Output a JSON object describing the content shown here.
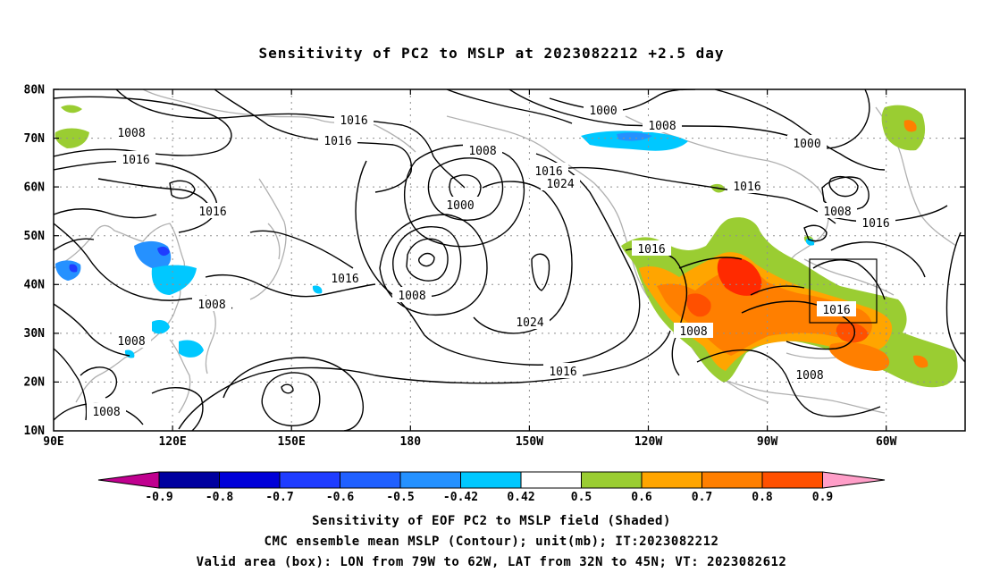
{
  "title": "Sensitivity of PC2 to MSLP at 2023082212 +2.5 day",
  "lat_labels": [
    "80N",
    "70N",
    "60N",
    "50N",
    "40N",
    "30N",
    "20N",
    "10N"
  ],
  "lon_labels": [
    "90E",
    "120E",
    "150E",
    "180",
    "150W",
    "120W",
    "90W",
    "60W"
  ],
  "contour_labels": [
    {
      "text": "1016"
    },
    {
      "text": "1016"
    },
    {
      "text": "1008"
    },
    {
      "text": "1016"
    },
    {
      "text": "1016"
    },
    {
      "text": "1008"
    },
    {
      "text": "1000"
    },
    {
      "text": "1016"
    },
    {
      "text": "1024"
    },
    {
      "text": "1000"
    },
    {
      "text": "1008"
    },
    {
      "text": "1000"
    },
    {
      "text": "1016"
    },
    {
      "text": "1016"
    },
    {
      "text": "1008"
    },
    {
      "text": "1016"
    },
    {
      "text": "1016"
    },
    {
      "text": "1008"
    },
    {
      "text": "1024"
    },
    {
      "text": "1016"
    },
    {
      "text": "1016"
    },
    {
      "text": "1008"
    },
    {
      "text": "1008"
    },
    {
      "text": "1008"
    },
    {
      "text": "1008"
    },
    {
      "text": "1008"
    }
  ],
  "colorbar": {
    "colors": [
      "#c0008f",
      "#00009f",
      "#0000d8",
      "#1f3cff",
      "#2060ff",
      "#2591ff",
      "#00c8ff",
      "#ffffff",
      "#9acd32",
      "#ffa500",
      "#ff7f00",
      "#ff5000",
      "#ff2a00",
      "#ff0000",
      "#ff9ec8"
    ],
    "labels": [
      "-0.9",
      "-0.8",
      "-0.7",
      "-0.6",
      "-0.5",
      "-0.42",
      "0.42",
      "0.5",
      "0.6",
      "0.7",
      "0.8",
      "0.9"
    ]
  },
  "captions": {
    "line1": "Sensitivity of EOF PC2 to MSLP field (Shaded)",
    "line2": "CMC ensemble mean MSLP (Contour); unit(mb); IT:2023082212",
    "line3": "Valid area (box): LON from 79W to 62W, LAT from 32N to 45N; VT: 2023082612"
  }
}
